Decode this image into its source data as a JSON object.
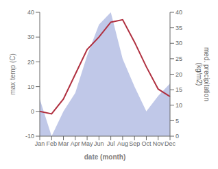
{
  "chart_data": {
    "type": "line",
    "categories": [
      "Jan",
      "Feb",
      "Mar",
      "Apr",
      "May",
      "Jun",
      "Jul",
      "Aug",
      "Sep",
      "Oct",
      "Nov",
      "Dec"
    ],
    "xlabel": "date (month)",
    "ylabel": "max temp (C)",
    "y2label": "med. precipitation\n(kg/m2)",
    "ylim": [
      -10,
      40
    ],
    "yticks": [
      -10,
      0,
      10,
      20,
      30,
      40
    ],
    "y2lim": [
      0,
      40
    ],
    "y2ticks": [
      0,
      5,
      10,
      15,
      20,
      25,
      30,
      35,
      40
    ],
    "series": [
      {
        "type": "area",
        "axis": "y2",
        "color": "#c0c8e8",
        "values": [
          12,
          0,
          8,
          14,
          26,
          36,
          40,
          25,
          16,
          8,
          13,
          17
        ]
      },
      {
        "type": "line",
        "color": "#b03040",
        "values": [
          0,
          -1,
          5,
          15,
          25,
          30,
          36,
          37,
          28,
          18,
          9,
          6
        ]
      }
    ]
  }
}
